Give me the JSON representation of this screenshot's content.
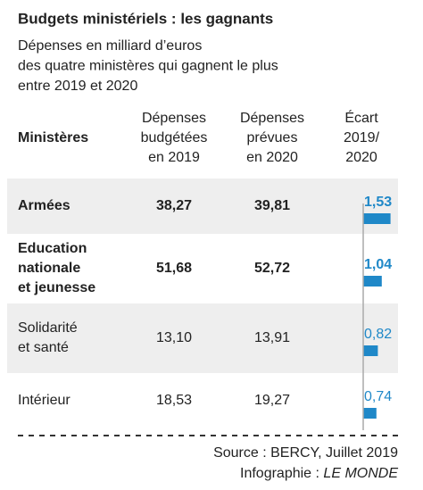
{
  "header": {
    "title": "Budgets ministériels : les gagnants",
    "subtitle": [
      "Dépenses en milliard d’euros",
      "des quatre ministères qui gagnent le plus",
      "entre 2019 et 2020"
    ]
  },
  "table": {
    "columns": [
      [
        "Ministères"
      ],
      [
        "Dépenses",
        "budgétées",
        "en 2019"
      ],
      [
        "Dépenses",
        "prévues",
        "en 2020"
      ],
      [
        "Écart",
        "2019/",
        "2020"
      ]
    ],
    "rows": [
      {
        "name": [
          "Armées"
        ],
        "y2019": "38,27",
        "y2020": "39,81",
        "ecart": {
          "value": 1.53,
          "label": "1,53"
        }
      },
      {
        "name": [
          "Education",
          "nationale",
          "et jeunesse"
        ],
        "y2019": "51,68",
        "y2020": "52,72",
        "ecart": {
          "value": 1.04,
          "label": "1,04"
        }
      },
      {
        "name": [
          "Solidarité",
          "et santé"
        ],
        "y2019": "13,10",
        "y2020": "13,91",
        "ecart": {
          "value": 0.82,
          "label": "0,82"
        }
      },
      {
        "name": [
          "Intérieur"
        ],
        "y2019": "18,53",
        "y2020": "19,27",
        "ecart": {
          "value": 0.74,
          "label": "0,74"
        }
      }
    ]
  },
  "footer": {
    "source": "Source : BERCY, Juillet 2019",
    "credit_prefix": "Infographie : ",
    "credit_name": "LE MONDE"
  }
}
